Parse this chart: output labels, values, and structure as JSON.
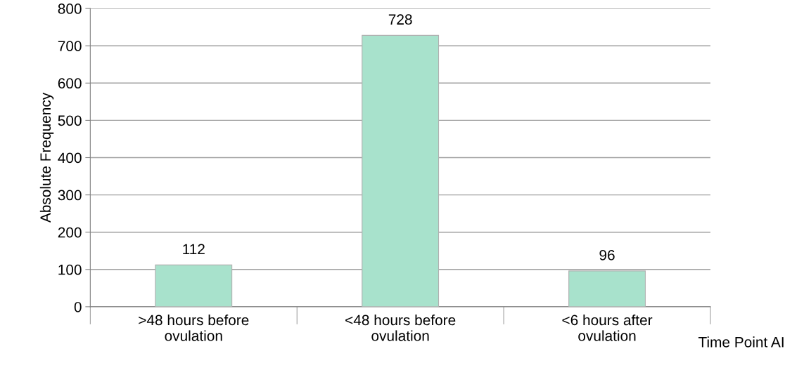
{
  "chart_data": {
    "type": "bar",
    "categories": [
      ">48 hours before\novulation",
      "<48 hours before\novulation",
      "<6 hours after\novulation"
    ],
    "values": [
      112,
      728,
      96
    ],
    "color": "#a8e2cc",
    "xlabel": "Time Point AI",
    "ylabel": "Absolute Frequency",
    "ylim": [
      0,
      800
    ],
    "yticks": [
      0,
      100,
      200,
      300,
      400,
      500,
      600,
      700,
      800
    ],
    "grid": "y",
    "data_labels": true
  }
}
